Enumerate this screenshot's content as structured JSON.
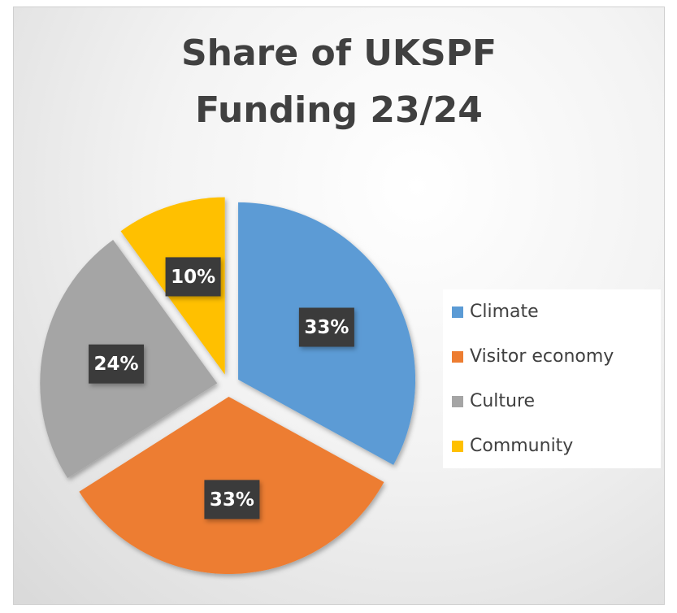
{
  "chart_data": {
    "type": "pie",
    "title": "Share of UKSPF Funding 23/24",
    "categories": [
      "Climate",
      "Visitor economy",
      "Culture",
      "Community"
    ],
    "values": [
      33,
      33,
      24,
      10
    ],
    "value_labels": [
      "33%",
      "33%",
      "24%",
      "10%"
    ],
    "colors": [
      "#5b9bd5",
      "#ed7d31",
      "#a5a5a5",
      "#ffc000"
    ],
    "legend": "right"
  }
}
